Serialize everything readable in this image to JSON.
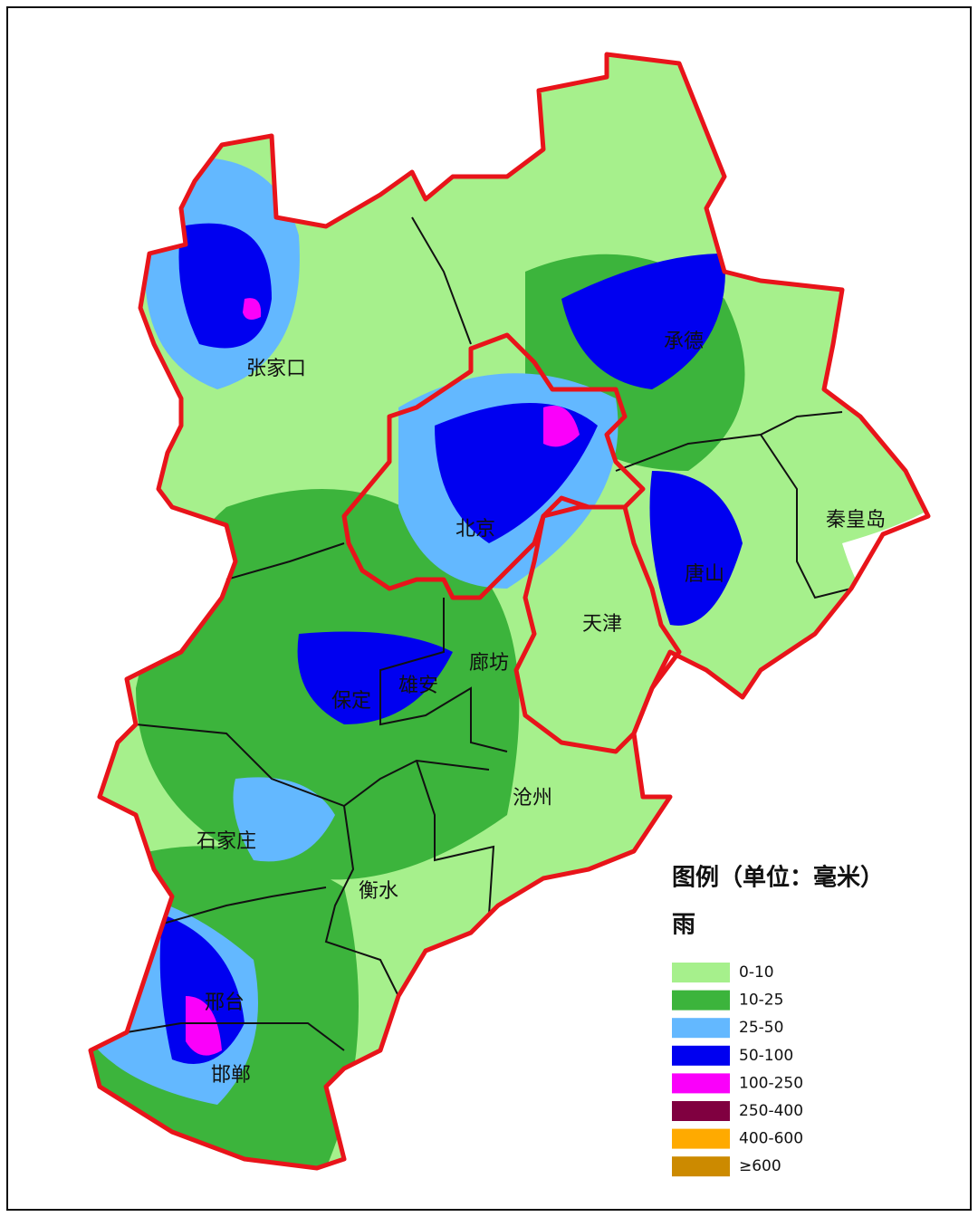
{
  "map": {
    "labels": [
      "张家口",
      "承德",
      "北京",
      "秦皇岛",
      "唐山",
      "天津",
      "廊坊",
      "雄安",
      "保定",
      "沧州",
      "石家庄",
      "衡水",
      "邢台",
      "邯郸"
    ],
    "legend": {
      "title": "图例（单位：毫米）",
      "subtitle": "雨",
      "items": [
        {
          "label": "0-10",
          "color": "#a6f08c"
        },
        {
          "label": "10-25",
          "color": "#3cb43c"
        },
        {
          "label": "25-50",
          "color": "#63b8ff"
        },
        {
          "label": "50-100",
          "color": "#0000f0"
        },
        {
          "label": "100-250",
          "color": "#fa00fa"
        },
        {
          "label": "250-400",
          "color": "#800040"
        },
        {
          "label": "400-600",
          "color": "#ffaa00"
        },
        {
          "label": "≥600",
          "color": "#cc8a00"
        }
      ]
    }
  }
}
